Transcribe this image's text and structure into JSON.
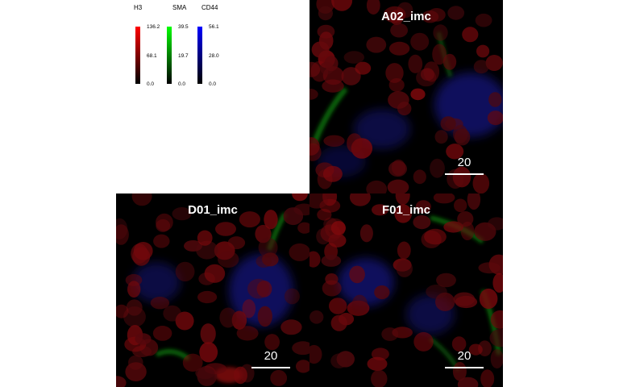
{
  "legend": [
    {
      "channel": "H3",
      "max": "136.2",
      "mid": "68.1",
      "min": "0.0",
      "color": "#ff0000"
    },
    {
      "channel": "SMA",
      "max": "39.5",
      "mid": "19.7",
      "min": "0.0",
      "color": "#00ff00"
    },
    {
      "channel": "CD44",
      "max": "56.1",
      "mid": "28.0",
      "min": "0.0",
      "color": "#0000ff"
    }
  ],
  "panels": [
    {
      "id": "A02_imc",
      "title": "A02_imc",
      "scale_bar_label": "20"
    },
    {
      "id": "D01_imc",
      "title": "D01_imc",
      "scale_bar_label": "20"
    },
    {
      "id": "F01_imc",
      "title": "F01_imc",
      "scale_bar_label": "20"
    }
  ]
}
